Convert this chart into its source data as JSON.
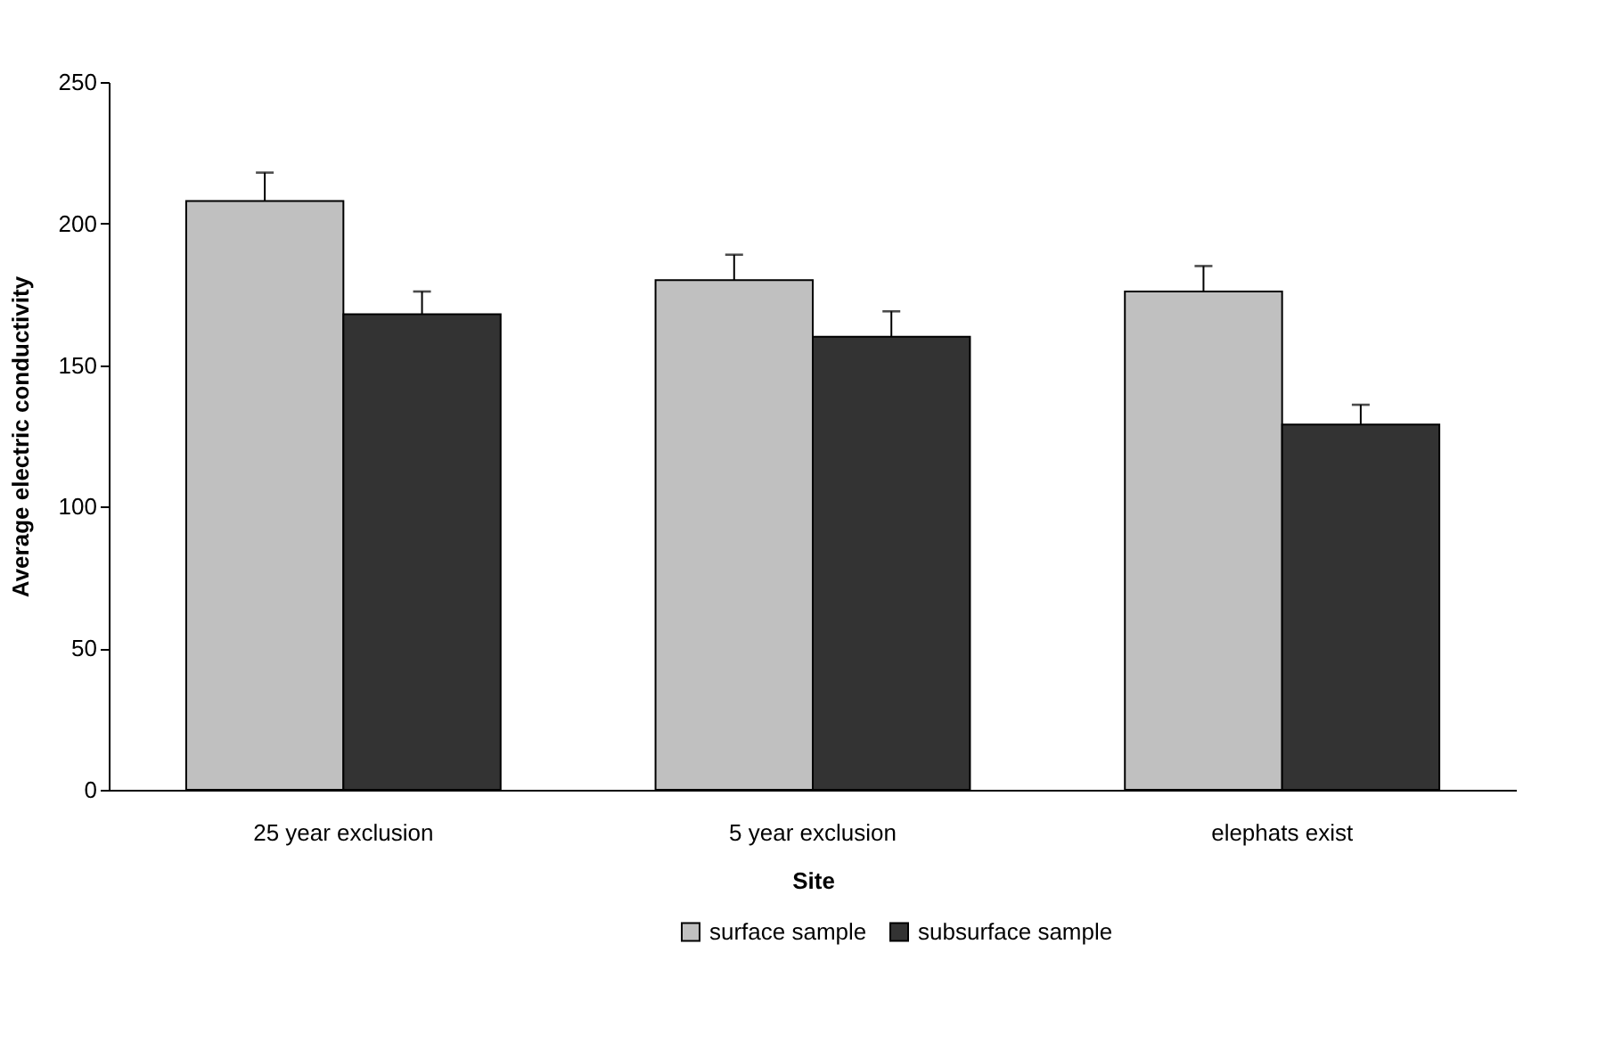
{
  "chart_data": {
    "type": "bar",
    "xlabel": "Site",
    "ylabel": "Average electric conductivity",
    "categories": [
      "25 year exclusion",
      "5 year exclusion",
      "elephats exist"
    ],
    "series": [
      {
        "name": "surface sample",
        "color": "#c0c0c0",
        "values": [
          208,
          180,
          176
        ],
        "errors": [
          [
            208,
            218
          ],
          [
            180,
            189
          ],
          [
            176,
            185
          ]
        ]
      },
      {
        "name": "subsurface sample",
        "color": "#333333",
        "values": [
          168,
          160,
          129
        ],
        "errors": [
          [
            168,
            176
          ],
          [
            160,
            169
          ],
          [
            129,
            136
          ]
        ]
      }
    ],
    "ylim": [
      0,
      250
    ],
    "yticks": [
      0,
      50,
      100,
      150,
      200,
      250
    ],
    "grid": false,
    "legend": "bottom"
  }
}
